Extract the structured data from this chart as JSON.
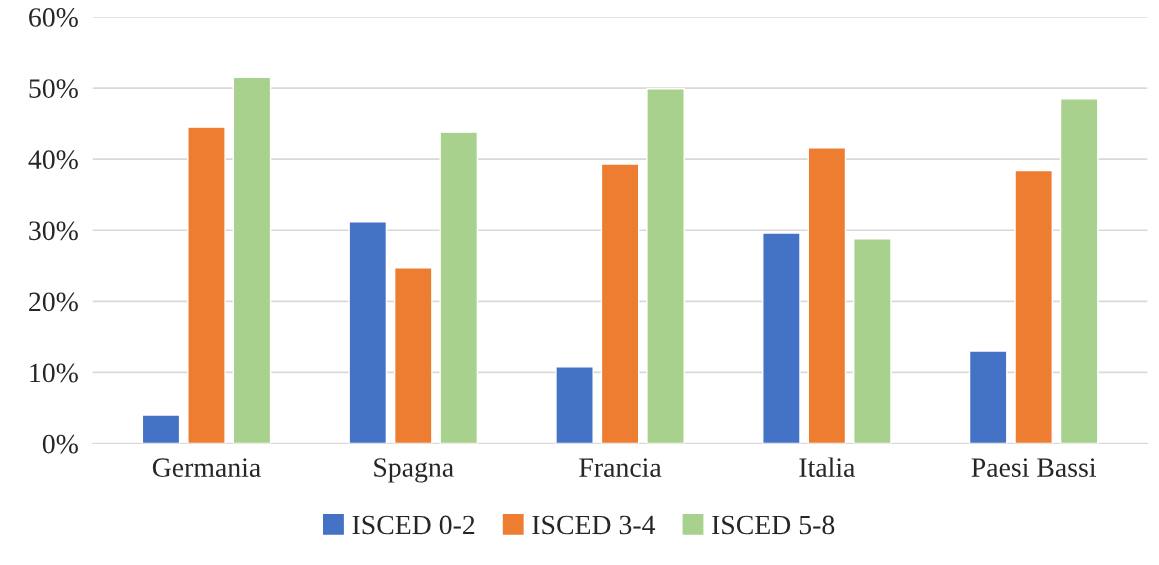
{
  "chart_data": {
    "type": "bar",
    "categories": [
      "Germania",
      "Spagna",
      "Francia",
      "Italia",
      "Paesi Bassi"
    ],
    "series": [
      {
        "name": "ISCED 0-2",
        "color": "#4472c4",
        "values": [
          4.0,
          31.2,
          10.8,
          29.6,
          13.0
        ]
      },
      {
        "name": "ISCED 3-4",
        "color": "#ed7d31",
        "values": [
          44.5,
          24.7,
          39.3,
          41.6,
          38.4
        ]
      },
      {
        "name": "ISCED 5-8",
        "color": "#a9d18e",
        "values": [
          51.5,
          43.8,
          49.9,
          28.8,
          48.5
        ]
      }
    ],
    "ylim": [
      0,
      60
    ],
    "yticks": [
      {
        "value": 0,
        "label": "0%"
      },
      {
        "value": 10,
        "label": "10%"
      },
      {
        "value": 20,
        "label": "20%"
      },
      {
        "value": 30,
        "label": "30%"
      },
      {
        "value": 40,
        "label": "40%"
      },
      {
        "value": 50,
        "label": "50%"
      },
      {
        "value": 60,
        "label": "60%"
      }
    ],
    "grid": "y",
    "legend": "bottom"
  }
}
